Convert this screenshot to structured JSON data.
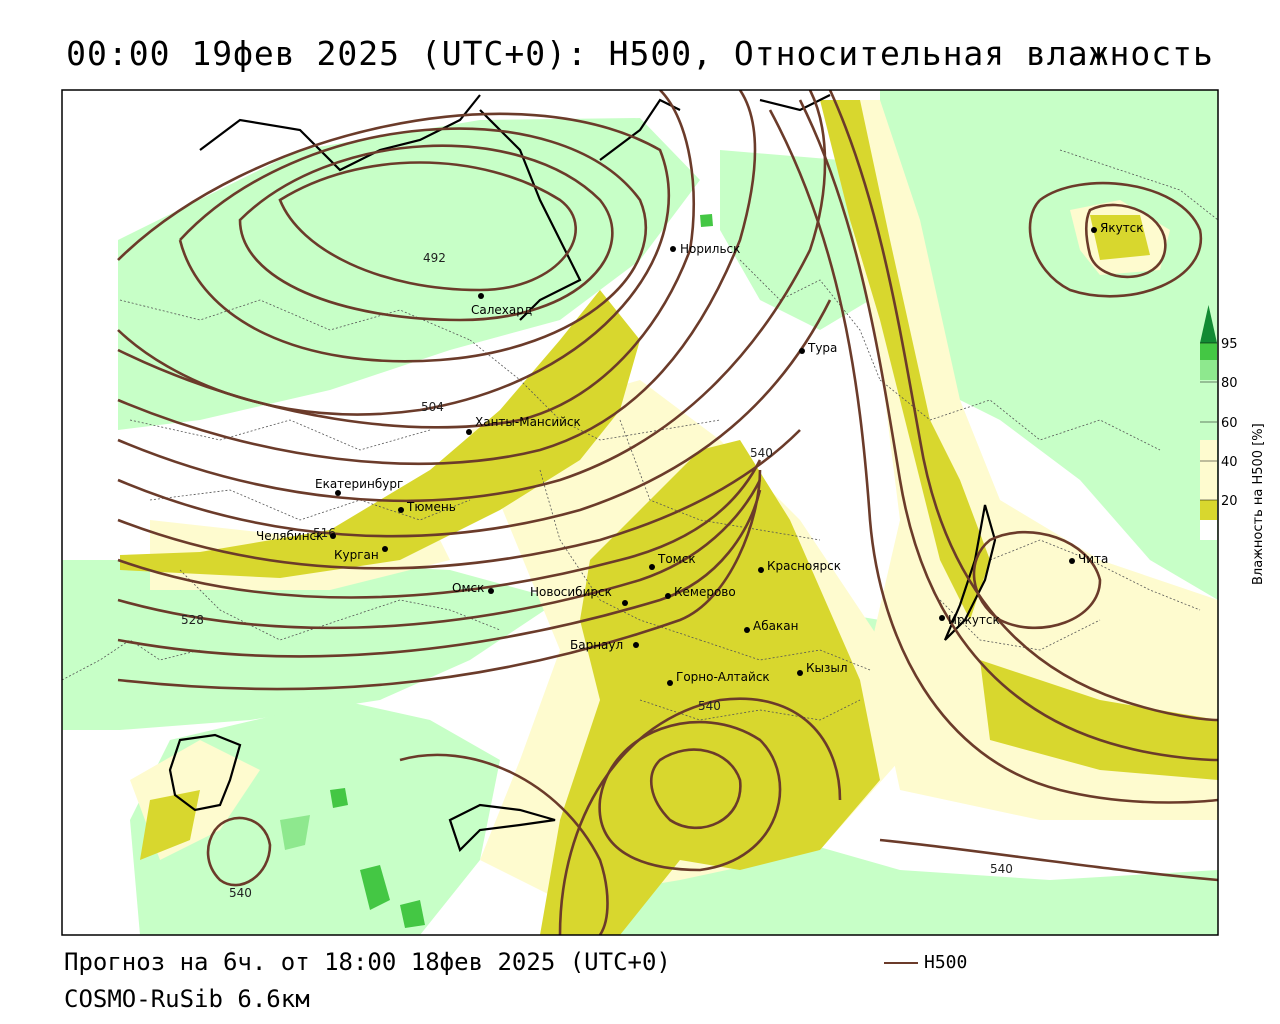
{
  "title": "00:00 19фев 2025 (UTC+0): H500, Относительная влажность",
  "forecast_text": "Прогноз на 6ч. от 18:00 18фев 2025 (UTC+0)",
  "model_text": "COSMO-RuSib 6.6км",
  "legend": {
    "line_label": "H500"
  },
  "colorbar": {
    "title": "Влажность на H500 [%]",
    "ticks": [
      "20",
      "40",
      "60",
      "80",
      "95"
    ],
    "colors": [
      "#ffffff",
      "#fefbcf",
      "#e6e66b",
      "#d8d72e",
      "#c7ffc7",
      "#8ee88e",
      "#44c744",
      "#128a33"
    ]
  },
  "contour_labels": [
    "492",
    "504",
    "516",
    "528",
    "540",
    "540",
    "540",
    "540"
  ],
  "cities": [
    {
      "name": "Якутск"
    },
    {
      "name": "Норильск"
    },
    {
      "name": "Салехард"
    },
    {
      "name": "Тура"
    },
    {
      "name": "Ханты-Мансийск"
    },
    {
      "name": "Екатеринбург"
    },
    {
      "name": "Тюмень"
    },
    {
      "name": "Челябинск"
    },
    {
      "name": "Курган"
    },
    {
      "name": "Омск"
    },
    {
      "name": "Новосибирск"
    },
    {
      "name": "Томск"
    },
    {
      "name": "Красноярск"
    },
    {
      "name": "Кемерово"
    },
    {
      "name": "Абакан"
    },
    {
      "name": "Барнаул"
    },
    {
      "name": "Горно-Алтайск"
    },
    {
      "name": "Кызыл"
    },
    {
      "name": "Иркутск"
    },
    {
      "name": "Чита"
    }
  ]
}
